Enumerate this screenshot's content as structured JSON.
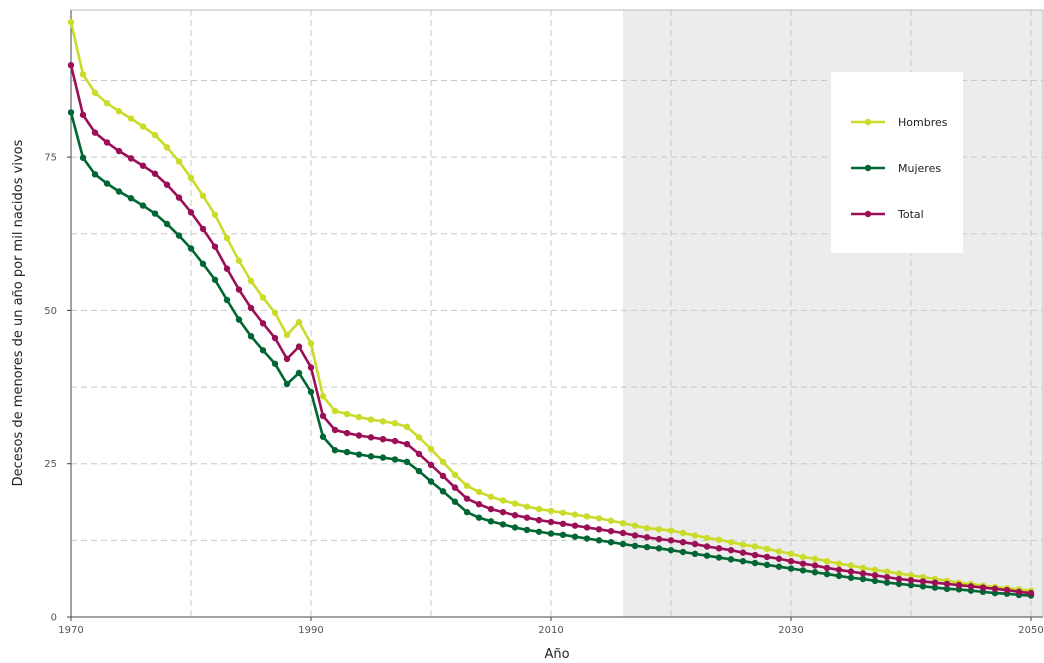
{
  "chart_data": {
    "type": "line",
    "title": "",
    "xlabel": "Año",
    "ylabel": "Decesos de menores de un año por mil nacidos vivos",
    "xlim": [
      1970,
      2051
    ],
    "ylim": [
      0,
      99
    ],
    "x_ticks": [
      1970,
      1990,
      2010,
      2030,
      2050
    ],
    "y_ticks": [
      0,
      25,
      50,
      75
    ],
    "x_tick_labels": [
      "1970",
      "1990",
      "2010",
      "2030",
      "2050"
    ],
    "y_tick_labels": [
      "0",
      "25",
      "50",
      "75"
    ],
    "grid": true,
    "projection_shading": {
      "from": 2016,
      "to": 2051,
      "color": "#ececec"
    },
    "legend": {
      "position": "top-right"
    },
    "x": [
      1970,
      1971,
      1972,
      1973,
      1974,
      1975,
      1976,
      1977,
      1978,
      1979,
      1980,
      1981,
      1982,
      1983,
      1984,
      1985,
      1986,
      1987,
      1988,
      1989,
      1990,
      1991,
      1992,
      1993,
      1994,
      1995,
      1996,
      1997,
      1998,
      1999,
      2000,
      2001,
      2002,
      2003,
      2004,
      2005,
      2006,
      2007,
      2008,
      2009,
      2010,
      2011,
      2012,
      2013,
      2014,
      2015,
      2016,
      2017,
      2018,
      2019,
      2020,
      2021,
      2022,
      2023,
      2024,
      2025,
      2026,
      2027,
      2028,
      2029,
      2030,
      2031,
      2032,
      2033,
      2034,
      2035,
      2036,
      2037,
      2038,
      2039,
      2040,
      2041,
      2042,
      2043,
      2044,
      2045,
      2046,
      2047,
      2048,
      2049,
      2050
    ],
    "series": [
      {
        "name": "Hombres",
        "color": "#cbdb2a",
        "values": [
          97.0,
          88.5,
          85.5,
          83.8,
          82.5,
          81.3,
          80.0,
          78.6,
          76.6,
          74.3,
          71.6,
          68.7,
          65.6,
          61.8,
          58.1,
          54.8,
          52.1,
          49.6,
          46.0,
          48.1,
          44.6,
          36.0,
          33.6,
          33.1,
          32.6,
          32.2,
          31.9,
          31.6,
          31.0,
          29.3,
          27.4,
          25.3,
          23.2,
          21.4,
          20.4,
          19.6,
          19.0,
          18.5,
          18.0,
          17.6,
          17.3,
          17.0,
          16.7,
          16.4,
          16.1,
          15.7,
          15.3,
          14.9,
          14.5,
          14.3,
          14.1,
          13.7,
          13.3,
          12.9,
          12.6,
          12.2,
          11.8,
          11.5,
          11.1,
          10.7,
          10.3,
          9.8,
          9.5,
          9.1,
          8.7,
          8.4,
          8.0,
          7.7,
          7.4,
          7.1,
          6.8,
          6.5,
          6.2,
          5.9,
          5.6,
          5.4,
          5.1,
          4.9,
          4.7,
          4.5,
          4.3
        ]
      },
      {
        "name": "Mujeres",
        "color": "#006633",
        "values": [
          82.3,
          74.9,
          72.2,
          70.7,
          69.4,
          68.3,
          67.1,
          65.8,
          64.1,
          62.2,
          60.1,
          57.6,
          55.0,
          51.7,
          48.5,
          45.8,
          43.5,
          41.3,
          38.0,
          39.8,
          36.7,
          29.4,
          27.2,
          26.9,
          26.5,
          26.2,
          26.0,
          25.7,
          25.3,
          23.8,
          22.1,
          20.5,
          18.8,
          17.1,
          16.2,
          15.6,
          15.1,
          14.6,
          14.2,
          13.9,
          13.6,
          13.4,
          13.1,
          12.8,
          12.5,
          12.2,
          11.9,
          11.6,
          11.4,
          11.2,
          10.9,
          10.6,
          10.3,
          10.0,
          9.7,
          9.4,
          9.1,
          8.8,
          8.5,
          8.2,
          7.9,
          7.6,
          7.3,
          7.0,
          6.7,
          6.4,
          6.2,
          5.9,
          5.6,
          5.4,
          5.2,
          5.0,
          4.8,
          4.6,
          4.5,
          4.3,
          4.1,
          3.9,
          3.8,
          3.6,
          3.5
        ]
      },
      {
        "name": "Total",
        "color": "#9b0f57",
        "values": [
          90.0,
          81.9,
          79.0,
          77.4,
          76.0,
          74.8,
          73.6,
          72.3,
          70.5,
          68.4,
          66.0,
          63.3,
          60.4,
          56.8,
          53.4,
          50.4,
          47.9,
          45.5,
          42.1,
          44.1,
          40.7,
          32.8,
          30.5,
          30.0,
          29.6,
          29.3,
          29.0,
          28.7,
          28.2,
          26.6,
          24.8,
          23.0,
          21.1,
          19.3,
          18.4,
          17.6,
          17.1,
          16.6,
          16.2,
          15.8,
          15.5,
          15.2,
          14.9,
          14.6,
          14.3,
          14.0,
          13.7,
          13.3,
          13.0,
          12.7,
          12.5,
          12.2,
          11.9,
          11.5,
          11.2,
          10.9,
          10.5,
          10.1,
          9.8,
          9.5,
          9.1,
          8.7,
          8.4,
          8.0,
          7.7,
          7.4,
          7.1,
          6.8,
          6.5,
          6.2,
          6.0,
          5.8,
          5.6,
          5.4,
          5.2,
          5.0,
          4.8,
          4.6,
          4.4,
          4.1,
          3.9
        ]
      }
    ]
  }
}
